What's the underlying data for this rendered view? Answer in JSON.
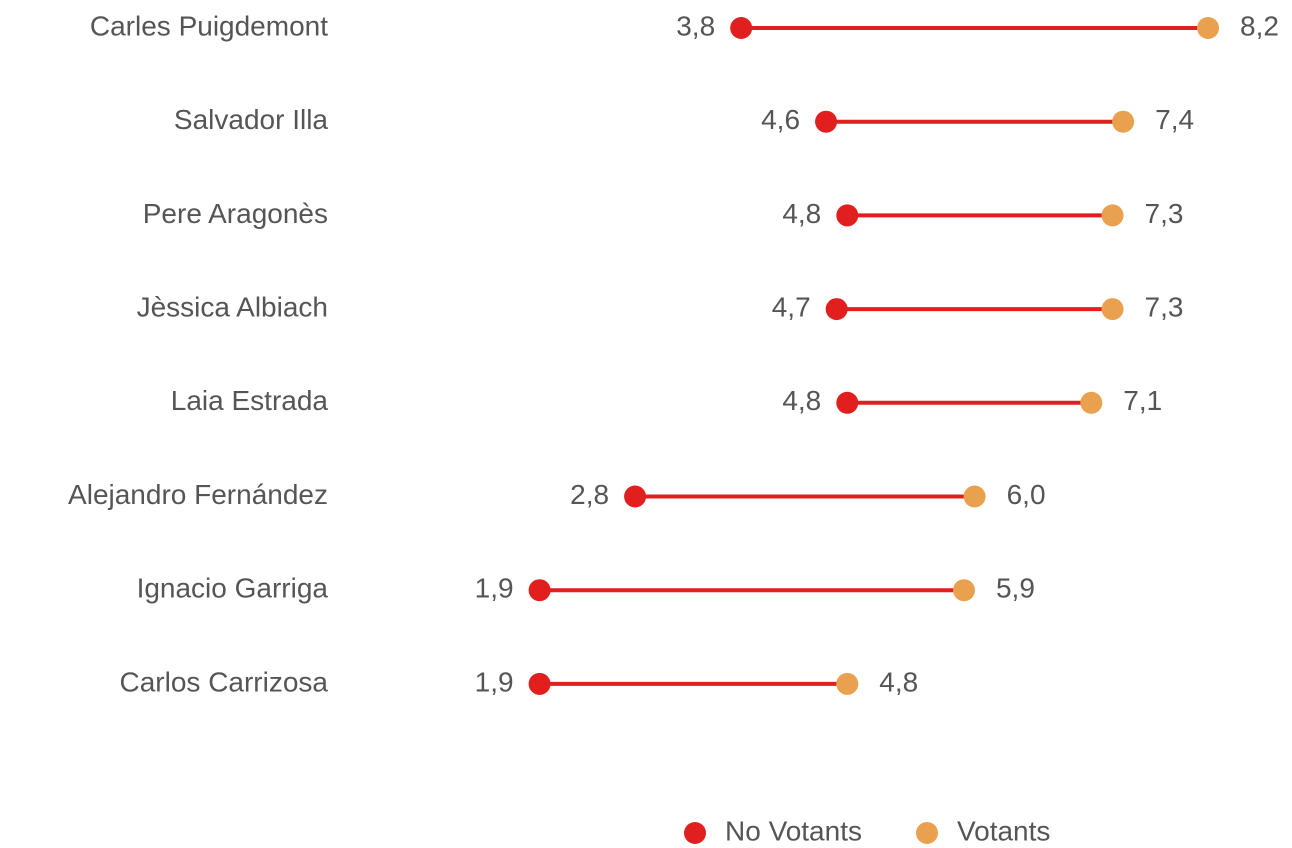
{
  "chart_data": {
    "type": "dumbbell",
    "categories": [
      "Carles Puigdemont",
      "Salvador Illa",
      "Pere Aragonès",
      "Jèssica Albiach",
      "Laia Estrada",
      "Alejandro Fernández",
      "Ignacio Garriga",
      "Carlos Carrizosa"
    ],
    "series": [
      {
        "name": "No Votants",
        "color": "#e11f1f",
        "values": [
          3.8,
          4.6,
          4.8,
          4.7,
          4.8,
          2.8,
          1.9,
          1.9
        ],
        "value_labels": [
          "3,8",
          "4,6",
          "4,8",
          "4,7",
          "4,8",
          "2,8",
          "1,9",
          "1,9"
        ]
      },
      {
        "name": "Votants",
        "color": "#e9a14f",
        "values": [
          8.2,
          7.4,
          7.3,
          7.3,
          7.1,
          6.0,
          5.9,
          4.8
        ],
        "value_labels": [
          "8,2",
          "7,4",
          "7,3",
          "7,3",
          "7,1",
          "6,0",
          "5,9",
          "4,8"
        ]
      }
    ],
    "legend": "bottom"
  }
}
